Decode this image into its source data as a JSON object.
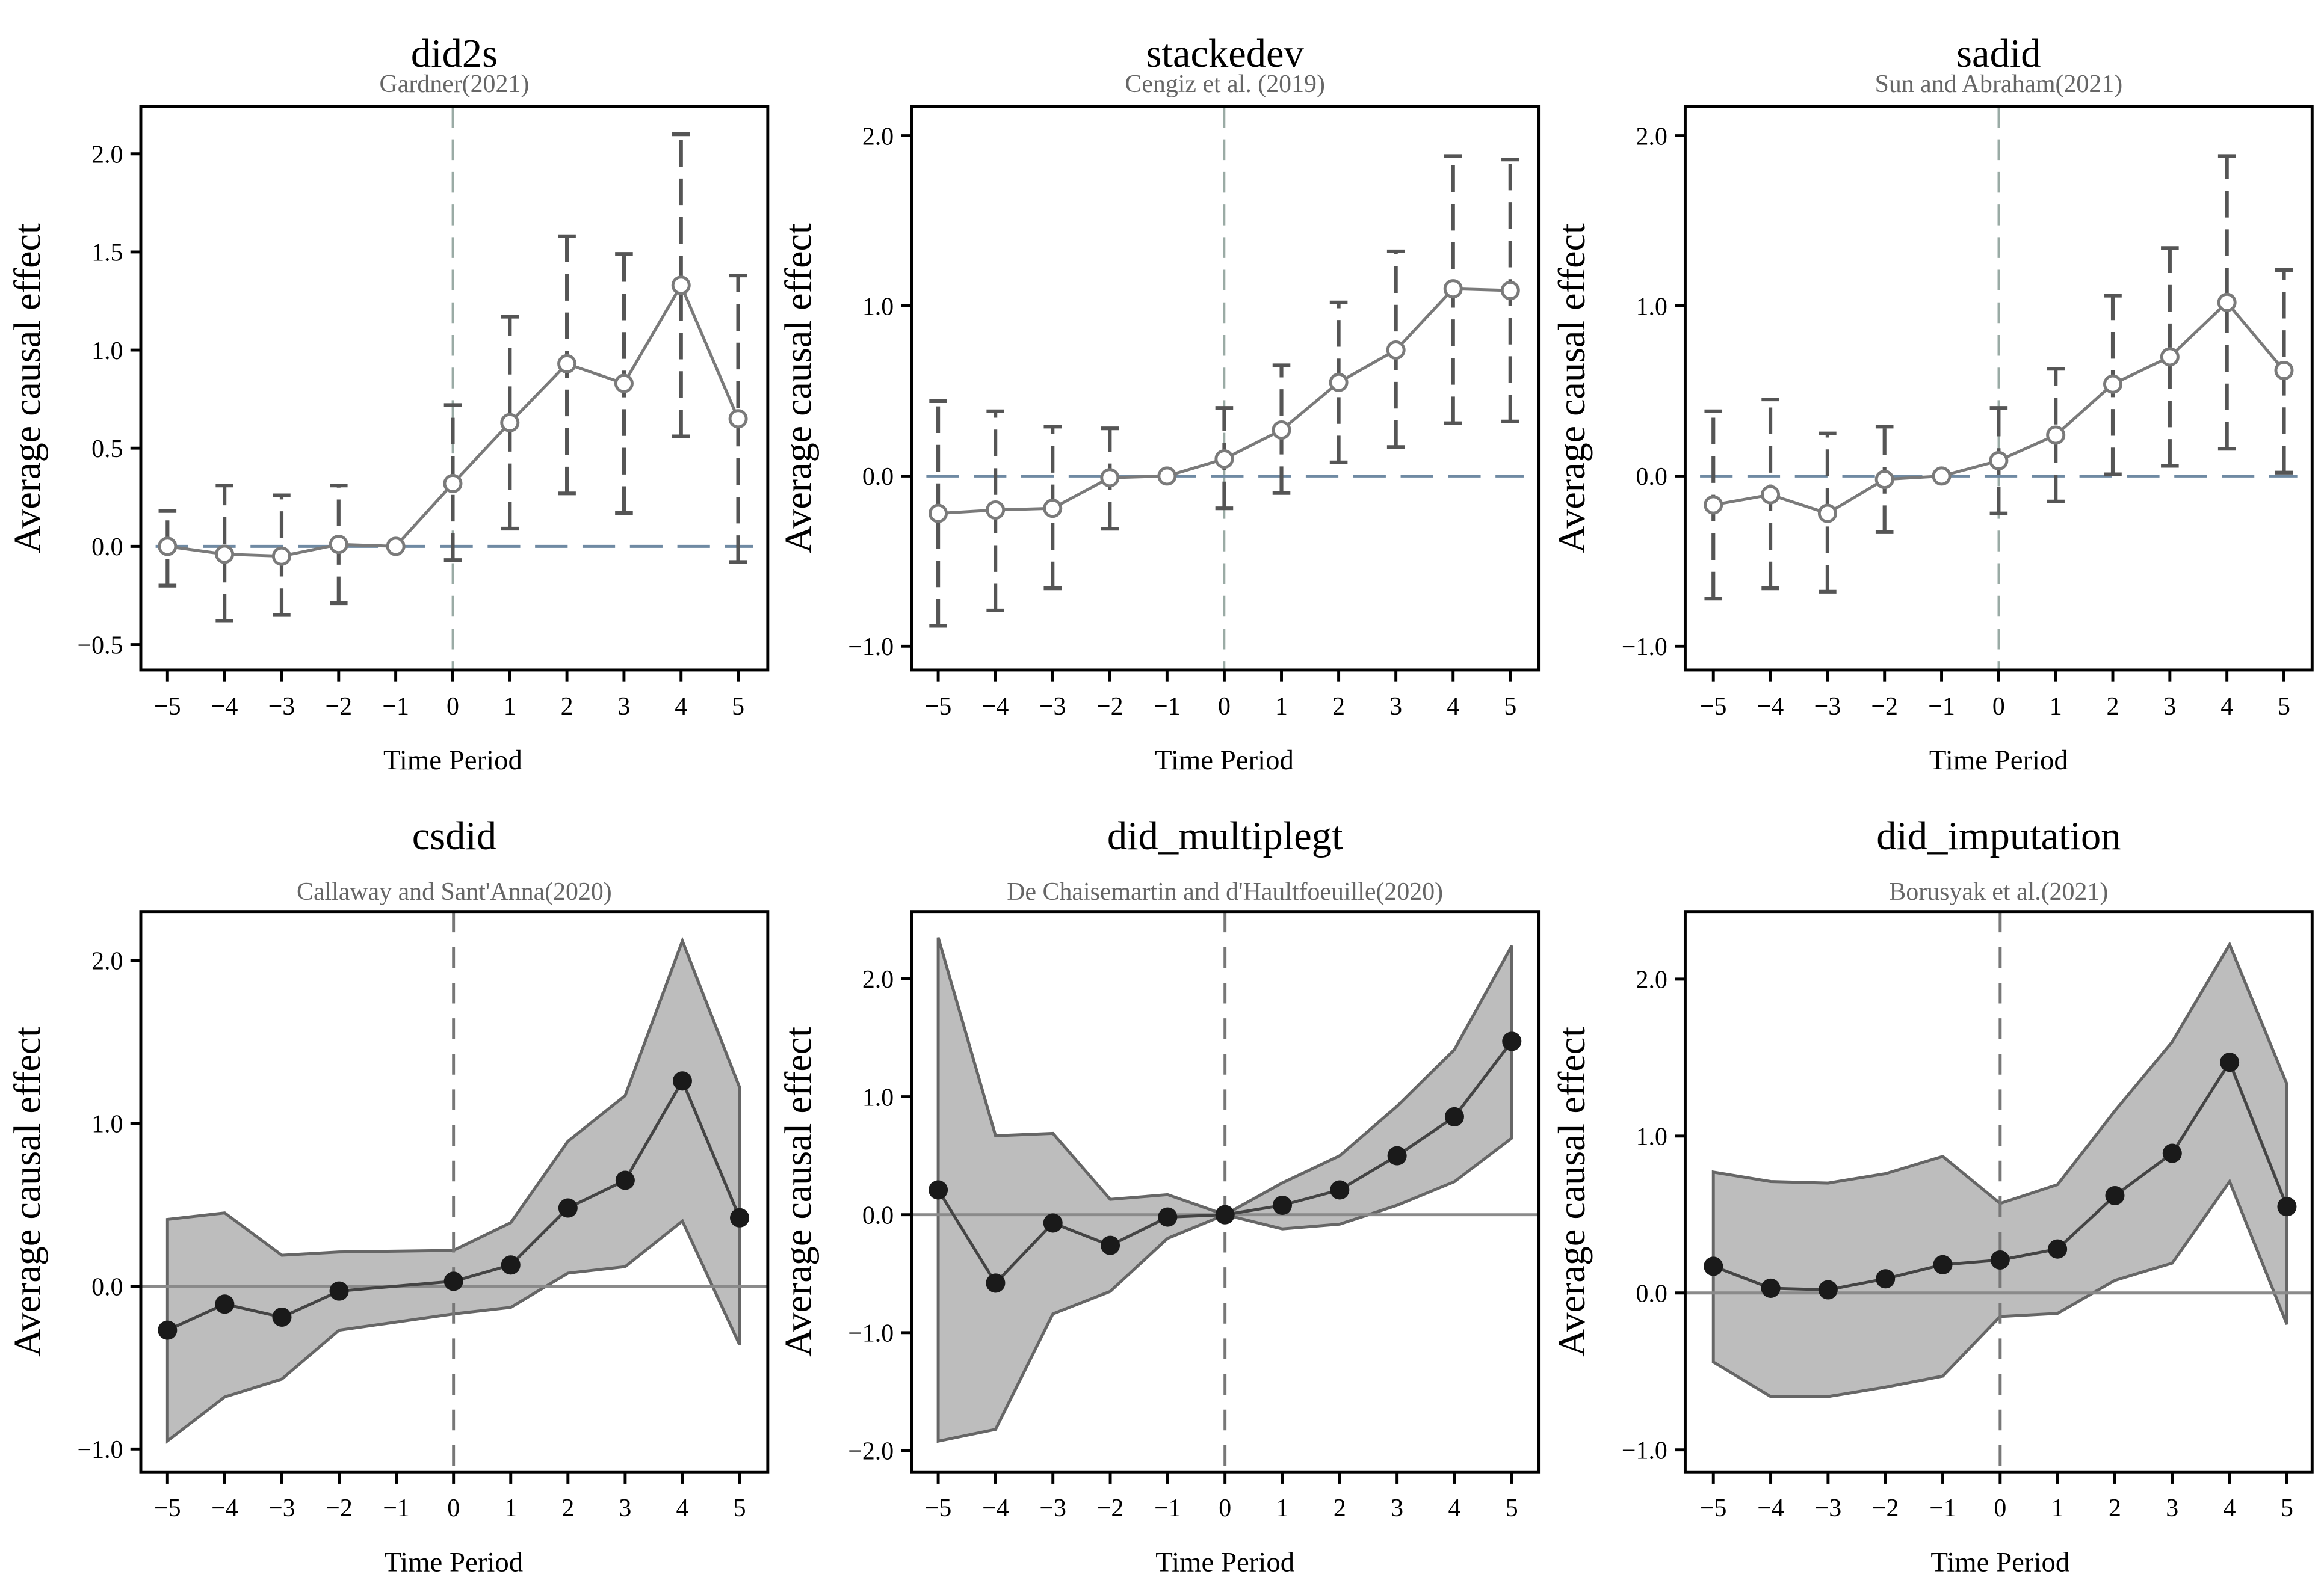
{
  "chart_data": [
    {
      "type": "line",
      "style": "errorbar",
      "title": "did2s",
      "subtitle": "Gardner(2021)",
      "xlabel": "Time Period",
      "ylabel": "Average causal effect",
      "x": [
        -5,
        -4,
        -3,
        -2,
        -1,
        0,
        1,
        2,
        3,
        4,
        5
      ],
      "y": [
        0.0,
        -0.04,
        -0.05,
        0.01,
        0.0,
        0.32,
        0.63,
        0.93,
        0.83,
        1.33,
        0.65
      ],
      "lower": [
        -0.2,
        -0.38,
        -0.35,
        -0.29,
        null,
        -0.07,
        0.09,
        0.27,
        0.17,
        0.56,
        -0.08
      ],
      "upper": [
        0.18,
        0.31,
        0.26,
        0.31,
        null,
        0.72,
        1.17,
        1.58,
        1.49,
        2.1,
        1.38
      ],
      "ylim": [
        -0.63,
        2.24
      ],
      "yticks": [
        -0.5,
        0.0,
        0.5,
        1.0,
        1.5,
        2.0
      ],
      "ytick_labels": [
        "−0.5",
        "0.0",
        "0.5",
        "1.0",
        "1.5",
        "2.0"
      ],
      "xtick_labels": [
        "−5",
        "−4",
        "−3",
        "−2",
        "−1",
        "0",
        "1",
        "2",
        "3",
        "4",
        "5"
      ]
    },
    {
      "type": "line",
      "style": "errorbar",
      "title": "stackedev",
      "subtitle": "Cengiz et al. (2019)",
      "xlabel": "Time Period",
      "ylabel": "Average causal effect",
      "x": [
        -5,
        -4,
        -3,
        -2,
        -1,
        0,
        1,
        2,
        3,
        4,
        5
      ],
      "y": [
        -0.22,
        -0.2,
        -0.19,
        -0.01,
        0.0,
        0.1,
        0.27,
        0.55,
        0.74,
        1.1,
        1.09
      ],
      "lower": [
        -0.88,
        -0.79,
        -0.66,
        -0.31,
        null,
        -0.19,
        -0.1,
        0.08,
        0.17,
        0.31,
        0.32
      ],
      "upper": [
        0.44,
        0.38,
        0.29,
        0.28,
        null,
        0.4,
        0.65,
        1.02,
        1.32,
        1.88,
        1.86
      ],
      "ylim": [
        -1.14,
        2.17
      ],
      "yticks": [
        -1.0,
        0.0,
        1.0,
        2.0
      ],
      "ytick_labels": [
        "−1.0",
        "0.0",
        "1.0",
        "2.0"
      ],
      "xtick_labels": [
        "−5",
        "−4",
        "−3",
        "−2",
        "−1",
        "0",
        "1",
        "2",
        "3",
        "4",
        "5"
      ]
    },
    {
      "type": "line",
      "style": "errorbar",
      "title": "sadid",
      "subtitle": "Sun and Abraham(2021)",
      "xlabel": "Time Period",
      "ylabel": "Average causal effect",
      "x": [
        -5,
        -4,
        -3,
        -2,
        -1,
        0,
        1,
        2,
        3,
        4,
        5
      ],
      "y": [
        -0.17,
        -0.11,
        -0.22,
        -0.02,
        0.0,
        0.09,
        0.24,
        0.54,
        0.7,
        1.02,
        0.62
      ],
      "lower": [
        -0.72,
        -0.66,
        -0.68,
        -0.33,
        null,
        -0.22,
        -0.15,
        0.01,
        0.06,
        0.16,
        0.02
      ],
      "upper": [
        0.38,
        0.45,
        0.25,
        0.29,
        null,
        0.4,
        0.63,
        1.06,
        1.34,
        1.88,
        1.21
      ],
      "ylim": [
        -1.14,
        2.17
      ],
      "yticks": [
        -1.0,
        0.0,
        1.0,
        2.0
      ],
      "ytick_labels": [
        "−1.0",
        "0.0",
        "1.0",
        "2.0"
      ],
      "xtick_labels": [
        "−5",
        "−4",
        "−3",
        "−2",
        "−1",
        "0",
        "1",
        "2",
        "3",
        "4",
        "5"
      ]
    },
    {
      "type": "area",
      "style": "band",
      "title": "csdid",
      "subtitle": "Callaway and Sant'Anna(2020)",
      "xlabel": "Time Period",
      "ylabel": "Average causal effect",
      "x": [
        -5,
        -4,
        -3,
        -2,
        0,
        1,
        2,
        3,
        4,
        5
      ],
      "y": [
        -0.27,
        -0.11,
        -0.19,
        -0.03,
        0.03,
        0.13,
        0.48,
        0.65,
        1.26,
        0.42
      ],
      "lower": [
        -0.95,
        -0.68,
        -0.57,
        -0.27,
        -0.17,
        -0.13,
        0.08,
        0.12,
        0.4,
        -0.36
      ],
      "upper": [
        0.41,
        0.45,
        0.19,
        0.21,
        0.22,
        0.39,
        0.89,
        1.17,
        2.12,
        1.22
      ],
      "ylim": [
        -1.14,
        2.3
      ],
      "yticks": [
        -1.0,
        0.0,
        1.0,
        2.0
      ],
      "ytick_labels": [
        "−1.0",
        "0.0",
        "1.0",
        "2.0"
      ],
      "xtick_labels": [
        "−5",
        "−4",
        "−3",
        "−2",
        "−1",
        "0",
        "1",
        "2",
        "3",
        "4",
        "5"
      ]
    },
    {
      "type": "area",
      "style": "band",
      "title": "did_multiplegt",
      "subtitle": "De Chaisemartin and d'Haultfoeuille(2020)",
      "xlabel": "Time Period",
      "ylabel": "Average causal effect",
      "x": [
        -5,
        -4,
        -3,
        -2,
        -1,
        0,
        1,
        2,
        3,
        4,
        5
      ],
      "y": [
        0.21,
        -0.58,
        -0.07,
        -0.26,
        -0.02,
        0.0,
        0.08,
        0.21,
        0.5,
        0.83,
        1.47
      ],
      "lower": [
        -1.92,
        -1.82,
        -0.84,
        -0.65,
        -0.2,
        0.0,
        -0.12,
        -0.08,
        0.08,
        0.28,
        0.65
      ],
      "upper": [
        2.35,
        0.67,
        0.69,
        0.13,
        0.17,
        0.0,
        0.27,
        0.5,
        0.92,
        1.4,
        2.28
      ],
      "ylim": [
        -2.18,
        2.57
      ],
      "yticks": [
        -2.0,
        -1.0,
        0.0,
        1.0,
        2.0
      ],
      "ytick_labels": [
        "−2.0",
        "−1.0",
        "0.0",
        "1.0",
        "2.0"
      ],
      "xtick_labels": [
        "−5",
        "−4",
        "−3",
        "−2",
        "−1",
        "0",
        "1",
        "2",
        "3",
        "4",
        "5"
      ]
    },
    {
      "type": "area",
      "style": "band",
      "title": "did_imputation",
      "subtitle": "Borusyak et al.(2021)",
      "xlabel": "Time Period",
      "ylabel": "Average causal effect",
      "x": [
        -5,
        -4,
        -3,
        -2,
        -1,
        0,
        1,
        2,
        3,
        4,
        5
      ],
      "y": [
        0.17,
        0.03,
        0.02,
        0.09,
        0.18,
        0.21,
        0.28,
        0.62,
        0.89,
        1.47,
        0.55
      ],
      "lower": [
        -0.44,
        -0.66,
        -0.66,
        -0.6,
        -0.53,
        -0.15,
        -0.13,
        0.08,
        0.19,
        0.71,
        -0.2
      ],
      "upper": [
        0.77,
        0.71,
        0.7,
        0.76,
        0.87,
        0.57,
        0.69,
        1.16,
        1.6,
        2.22,
        1.33
      ],
      "ylim": [
        -1.14,
        2.43
      ],
      "yticks": [
        -1.0,
        0.0,
        1.0,
        2.0
      ],
      "ytick_labels": [
        "−1.0",
        "0.0",
        "1.0",
        "2.0"
      ],
      "xtick_labels": [
        "−5",
        "−4",
        "−3",
        "−2",
        "−1",
        "0",
        "1",
        "2",
        "3",
        "4",
        "5"
      ]
    }
  ],
  "colors": {
    "errorbar_line": "#7a7a7a",
    "errorbar_whisker": "#555555",
    "zero_line_top": "#6f8aa3",
    "vline_top": "#9aaba5",
    "band_fill": "#bdbdbd",
    "band_stroke": "#666666",
    "point_bottom": "#1a1a1a",
    "zero_line_bottom": "#8a8a8a"
  }
}
